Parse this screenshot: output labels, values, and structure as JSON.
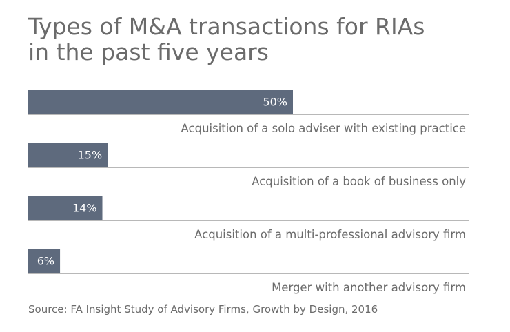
{
  "title_line1": "Types of M&A transactions for RIAs",
  "title_line2": "in the past five years",
  "source": "Source: FA Insight Study of Advisory Firms, Growth by Design, 2016",
  "colors": {
    "bar": "#5e6a7d",
    "text": "#6b6b6b",
    "rule": "#b8b8b8",
    "label_on_bar": "#ffffff"
  },
  "chart_data": {
    "type": "bar",
    "orientation": "horizontal",
    "categories": [
      "Acquisition of a solo adviser with existing practice",
      "Acquisition of a book of business only",
      "Acquisition of a multi-professional advisory firm",
      "Merger with another advisory firm"
    ],
    "values": [
      50,
      15,
      14,
      6
    ],
    "value_labels": [
      "50%",
      "15%",
      "14%",
      "6%"
    ],
    "xlim": [
      0,
      100
    ],
    "grid": false
  }
}
